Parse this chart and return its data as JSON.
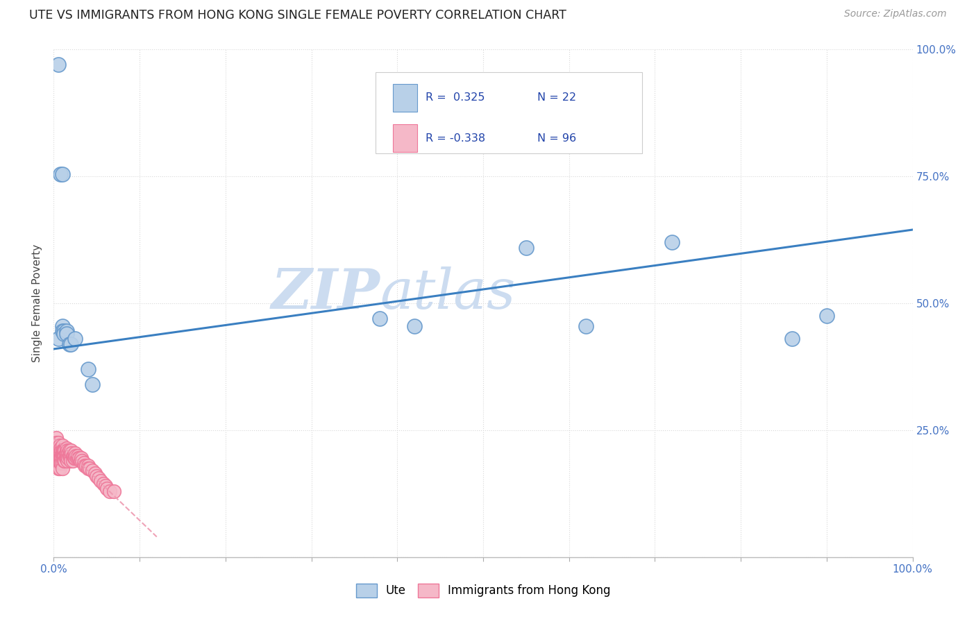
{
  "title": "UTE VS IMMIGRANTS FROM HONG KONG SINGLE FEMALE POVERTY CORRELATION CHART",
  "source_text": "Source: ZipAtlas.com",
  "ylabel": "Single Female Poverty",
  "watermark_line1": "ZIP",
  "watermark_line2": "atlas",
  "xlim": [
    0,
    1
  ],
  "ylim": [
    0,
    1
  ],
  "xtick_labels_ends": [
    "0.0%",
    "100.0%"
  ],
  "xtick_vals": [
    0,
    0.1,
    0.2,
    0.3,
    0.4,
    0.5,
    0.6,
    0.7,
    0.8,
    0.9,
    1.0
  ],
  "ytick_vals": [
    0,
    0.25,
    0.5,
    0.75,
    1.0
  ],
  "ytick_labels": [
    "",
    "25.0%",
    "50.0%",
    "75.0%",
    "100.0%"
  ],
  "legend_r_ute": "0.325",
  "legend_n_ute": "22",
  "legend_r_hk": "-0.338",
  "legend_n_hk": "96",
  "ute_color": "#b8d0e8",
  "hk_color": "#f5b8c8",
  "ute_edge_color": "#6699cc",
  "hk_edge_color": "#ee7799",
  "trend_ute_color": "#3a7fc1",
  "trend_hk_color": "#ee99b0",
  "background_color": "#ffffff",
  "grid_color": "#d8d8d8",
  "title_color": "#222222",
  "axis_label_color": "#444444",
  "tick_label_color": "#4472c4",
  "source_color": "#999999",
  "watermark_color": "#ccdcf0",
  "ute_scatter_x": [
    0.005,
    0.01,
    0.01,
    0.012,
    0.012,
    0.015,
    0.015,
    0.018,
    0.02,
    0.025,
    0.04,
    0.045,
    0.38,
    0.42,
    0.55,
    0.62,
    0.72,
    0.86,
    0.005,
    0.008,
    0.01,
    0.9
  ],
  "ute_scatter_y": [
    0.43,
    0.455,
    0.445,
    0.445,
    0.44,
    0.445,
    0.44,
    0.42,
    0.42,
    0.43,
    0.37,
    0.34,
    0.47,
    0.455,
    0.61,
    0.455,
    0.62,
    0.43,
    0.97,
    0.755,
    0.755,
    0.475
  ],
  "hk_scatter_x": [
    0.002,
    0.002,
    0.003,
    0.003,
    0.003,
    0.003,
    0.004,
    0.004,
    0.004,
    0.004,
    0.005,
    0.005,
    0.005,
    0.005,
    0.005,
    0.005,
    0.006,
    0.006,
    0.006,
    0.006,
    0.007,
    0.007,
    0.007,
    0.007,
    0.007,
    0.007,
    0.008,
    0.008,
    0.008,
    0.008,
    0.009,
    0.009,
    0.009,
    0.009,
    0.01,
    0.01,
    0.01,
    0.01,
    0.01,
    0.01,
    0.011,
    0.011,
    0.012,
    0.012,
    0.012,
    0.013,
    0.013,
    0.013,
    0.014,
    0.014,
    0.015,
    0.015,
    0.015,
    0.016,
    0.016,
    0.016,
    0.017,
    0.017,
    0.018,
    0.018,
    0.019,
    0.019,
    0.02,
    0.02,
    0.02,
    0.021,
    0.022,
    0.022,
    0.023,
    0.024,
    0.025,
    0.025,
    0.026,
    0.027,
    0.028,
    0.029,
    0.03,
    0.031,
    0.032,
    0.033,
    0.035,
    0.036,
    0.038,
    0.04,
    0.04,
    0.042,
    0.045,
    0.048,
    0.05,
    0.052,
    0.055,
    0.058,
    0.06,
    0.062,
    0.065,
    0.07
  ],
  "hk_scatter_y": [
    0.22,
    0.2,
    0.235,
    0.225,
    0.215,
    0.205,
    0.22,
    0.21,
    0.2,
    0.19,
    0.225,
    0.215,
    0.205,
    0.195,
    0.185,
    0.175,
    0.215,
    0.205,
    0.195,
    0.185,
    0.22,
    0.21,
    0.2,
    0.195,
    0.185,
    0.175,
    0.215,
    0.205,
    0.195,
    0.185,
    0.21,
    0.2,
    0.195,
    0.185,
    0.22,
    0.21,
    0.2,
    0.195,
    0.185,
    0.175,
    0.21,
    0.2,
    0.21,
    0.2,
    0.19,
    0.21,
    0.2,
    0.19,
    0.205,
    0.195,
    0.215,
    0.205,
    0.195,
    0.21,
    0.2,
    0.19,
    0.205,
    0.195,
    0.21,
    0.2,
    0.205,
    0.195,
    0.21,
    0.2,
    0.19,
    0.205,
    0.2,
    0.19,
    0.2,
    0.195,
    0.205,
    0.195,
    0.2,
    0.195,
    0.2,
    0.195,
    0.195,
    0.19,
    0.195,
    0.19,
    0.185,
    0.18,
    0.18,
    0.18,
    0.175,
    0.175,
    0.17,
    0.165,
    0.16,
    0.155,
    0.15,
    0.145,
    0.14,
    0.135,
    0.13,
    0.13
  ],
  "trend_ute_x0": 0.0,
  "trend_ute_x1": 1.0,
  "trend_ute_y0": 0.41,
  "trend_ute_y1": 0.645,
  "trend_hk_x0": 0.0,
  "trend_hk_x1": 0.12,
  "trend_hk_y0": 0.235,
  "trend_hk_y1": 0.04
}
